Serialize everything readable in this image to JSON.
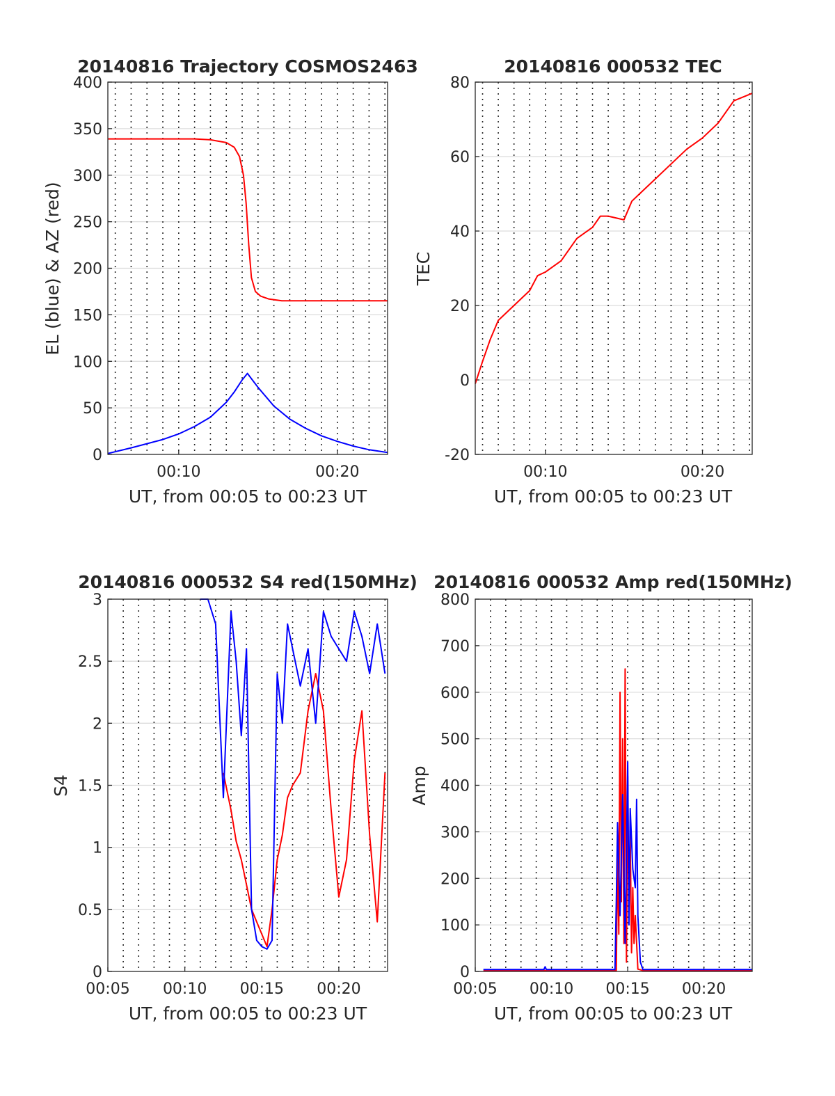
{
  "colors": {
    "red": "#ff0000",
    "blue": "#0000ff",
    "grid": "#dcdcdc",
    "axis": "#262626"
  },
  "chart_data": [
    {
      "id": "traj",
      "type": "line",
      "title": "20140816 Trajectory COSMOS2463",
      "xlabel": "UT, from 00:05 to 00:23 UT",
      "ylabel": "EL (blue) & AZ (red)",
      "xlim": [
        "00:05:32",
        "00:23:10"
      ],
      "ylim": [
        0,
        400
      ],
      "yticks": [
        0,
        50,
        100,
        150,
        200,
        250,
        300,
        350,
        400
      ],
      "xtick_labels": [
        "00:10",
        "00:20"
      ],
      "grid": true,
      "series": [
        {
          "color": "#ff0000",
          "x": [
            "00:05:32",
            "00:09:00",
            "00:11:00",
            "00:12:00",
            "00:13:00",
            "00:13:30",
            "00:13:50",
            "00:14:05",
            "00:14:15",
            "00:14:25",
            "00:14:35",
            "00:14:50",
            "00:15:10",
            "00:15:40",
            "00:16:30",
            "00:18:00",
            "00:20:00",
            "00:23:10"
          ],
          "y": [
            339,
            339,
            339,
            338,
            335,
            330,
            320,
            300,
            270,
            225,
            190,
            175,
            170,
            167,
            165,
            165,
            165,
            165
          ]
        },
        {
          "color": "#0000ff",
          "x": [
            "00:05:32",
            "00:07:00",
            "00:09:00",
            "00:10:00",
            "00:11:00",
            "00:12:00",
            "00:13:00",
            "00:13:30",
            "00:14:00",
            "00:14:20",
            "00:15:00",
            "00:16:00",
            "00:17:00",
            "00:18:00",
            "00:19:00",
            "00:20:00",
            "00:21:00",
            "00:22:00",
            "00:23:10"
          ],
          "y": [
            1,
            7,
            16,
            22,
            30,
            40,
            56,
            67,
            80,
            87,
            72,
            52,
            38,
            28,
            20,
            14,
            9,
            5,
            2
          ]
        }
      ]
    },
    {
      "id": "tec",
      "type": "line",
      "title": "20140816 000532 TEC",
      "xlabel": "UT, from 00:05 to 00:23 UT",
      "ylabel": "TEC",
      "xlim": [
        "00:05:32",
        "00:23:10"
      ],
      "ylim": [
        -20,
        80
      ],
      "yticks": [
        -20,
        0,
        20,
        40,
        60,
        80
      ],
      "xtick_labels": [
        "00:10",
        "00:20"
      ],
      "grid": true,
      "series": [
        {
          "color": "#ff0000",
          "x": [
            "00:05:32",
            "00:06:00",
            "00:06:30",
            "00:07:00",
            "00:08:00",
            "00:09:00",
            "00:09:30",
            "00:10:00",
            "00:11:00",
            "00:12:00",
            "00:13:00",
            "00:13:30",
            "00:14:00",
            "00:15:00",
            "00:15:30",
            "00:16:00",
            "00:17:00",
            "00:18:00",
            "00:19:00",
            "00:20:00",
            "00:21:00",
            "00:22:00",
            "00:23:10"
          ],
          "y": [
            -1,
            5,
            11,
            16,
            20,
            24,
            28,
            29,
            32,
            38,
            41,
            44,
            44,
            43,
            48,
            50,
            54,
            58,
            62,
            65,
            69,
            75,
            77
          ]
        }
      ]
    },
    {
      "id": "s4",
      "type": "line",
      "title": "20140816 000532 S4 red(150MHz)",
      "xlabel": "UT, from 00:05 to 00:23 UT",
      "ylabel": "S4",
      "xlim": [
        "00:05:00",
        "00:23:10"
      ],
      "ylim": [
        0,
        3
      ],
      "yticks": [
        0,
        0.5,
        1,
        1.5,
        2,
        2.5,
        3
      ],
      "xtick_labels": [
        "00:05",
        "00:10",
        "00:15",
        "00:20"
      ],
      "grid": true,
      "series": [
        {
          "color": "#ff0000",
          "x": [
            "00:12:30",
            "00:13:00",
            "00:13:20",
            "00:13:40",
            "00:14:00",
            "00:14:20",
            "00:14:40",
            "00:15:00",
            "00:15:20",
            "00:15:40",
            "00:16:00",
            "00:16:20",
            "00:16:40",
            "00:17:00",
            "00:17:30",
            "00:18:00",
            "00:18:30",
            "00:19:00",
            "00:19:30",
            "00:20:00",
            "00:20:30",
            "00:21:00",
            "00:21:30",
            "00:22:00",
            "00:22:30",
            "00:23:00"
          ],
          "y": [
            1.6,
            1.3,
            1.05,
            0.9,
            0.7,
            0.5,
            0.4,
            0.3,
            0.2,
            0.5,
            0.9,
            1.1,
            1.4,
            1.5,
            1.6,
            2.1,
            2.4,
            2.1,
            1.3,
            0.6,
            0.9,
            1.7,
            2.1,
            1.1,
            0.4,
            1.6
          ]
        },
        {
          "color": "#0000ff",
          "x": [
            "00:11:00",
            "00:11:30",
            "00:12:00",
            "00:12:30",
            "00:13:00",
            "00:13:20",
            "00:13:40",
            "00:14:00",
            "00:14:20",
            "00:14:40",
            "00:15:00",
            "00:15:20",
            "00:15:40",
            "00:16:00",
            "00:16:20",
            "00:16:40",
            "00:17:00",
            "00:17:30",
            "00:18:00",
            "00:18:30",
            "00:19:00",
            "00:19:30",
            "00:20:00",
            "00:20:30",
            "00:21:00",
            "00:21:30",
            "00:22:00",
            "00:22:30",
            "00:23:00"
          ],
          "y": [
            3.0,
            3.0,
            2.8,
            1.4,
            2.9,
            2.5,
            1.9,
            2.6,
            0.5,
            0.25,
            0.2,
            0.18,
            0.25,
            2.4,
            2.0,
            2.8,
            2.6,
            2.3,
            2.6,
            2.0,
            2.9,
            2.7,
            2.6,
            2.5,
            2.9,
            2.7,
            2.4,
            2.8,
            2.4
          ]
        }
      ]
    },
    {
      "id": "amp",
      "type": "line",
      "title": "20140816 000532 Amp red(150MHz)",
      "xlabel": "UT, from 00:05 to 00:23 UT",
      "ylabel": "Amp",
      "xlim": [
        "00:05:00",
        "00:23:10"
      ],
      "ylim": [
        0,
        800
      ],
      "yticks": [
        0,
        100,
        200,
        300,
        400,
        500,
        600,
        700,
        800
      ],
      "xtick_labels": [
        "00:05",
        "00:10",
        "00:15",
        "00:20"
      ],
      "grid": true,
      "series": [
        {
          "color": "#ff0000",
          "x": [
            "00:05:32",
            "00:14:15",
            "00:14:20",
            "00:14:25",
            "00:14:30",
            "00:14:35",
            "00:14:40",
            "00:14:45",
            "00:14:50",
            "00:14:55",
            "00:15:00",
            "00:15:05",
            "00:15:10",
            "00:15:15",
            "00:15:20",
            "00:15:25",
            "00:15:30",
            "00:15:40",
            "00:16:00",
            "00:23:10"
          ],
          "y": [
            2,
            2,
            250,
            80,
            600,
            150,
            500,
            60,
            650,
            20,
            420,
            120,
            300,
            40,
            180,
            60,
            120,
            5,
            2,
            2
          ]
        },
        {
          "color": "#0000ff",
          "x": [
            "00:05:32",
            "00:09:30",
            "00:09:35",
            "00:09:40",
            "00:14:10",
            "00:14:15",
            "00:14:20",
            "00:14:30",
            "00:14:40",
            "00:14:50",
            "00:15:00",
            "00:15:05",
            "00:15:10",
            "00:15:20",
            "00:15:30",
            "00:15:35",
            "00:15:40",
            "00:15:50",
            "00:16:00",
            "00:23:10"
          ],
          "y": [
            4,
            4,
            10,
            4,
            4,
            150,
            320,
            120,
            380,
            60,
            450,
            100,
            350,
            220,
            180,
            370,
            120,
            20,
            4,
            4
          ]
        }
      ]
    }
  ]
}
